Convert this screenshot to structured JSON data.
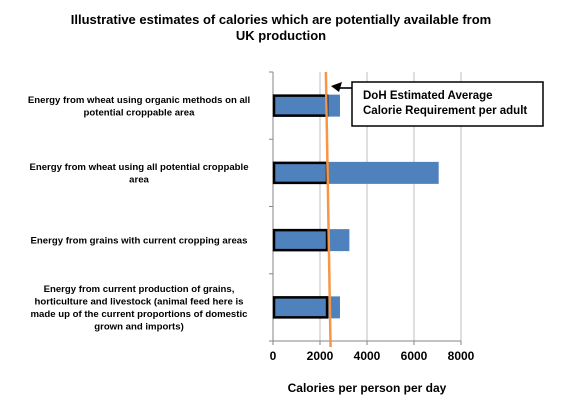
{
  "chart_data": {
    "type": "bar",
    "orientation": "horizontal",
    "title_lines": [
      "Illustrative estimates of calories which are potentially available from",
      "UK production"
    ],
    "xlabel": "Calories per person per day",
    "xlim": [
      0,
      8000
    ],
    "xticks": [
      0,
      2000,
      4000,
      6000,
      8000
    ],
    "grid": "vertical",
    "categories": [
      {
        "label_lines": [
          "Energy from wheat using organic methods on all",
          "potential croppable area"
        ],
        "value": 2850,
        "highlight_value": 2300
      },
      {
        "label_lines": [
          "Energy from wheat using all potential croppable",
          "area"
        ],
        "value": 7050,
        "highlight_value": 2300
      },
      {
        "label_lines": [
          "Energy from grains with current cropping areas"
        ],
        "value": 3250,
        "highlight_value": 2300
      },
      {
        "label_lines": [
          "Energy from current production of grains,",
          "horticulture and livestock (animal feed here is",
          "made up of the current proportions of domestic",
          "grown and imports)"
        ],
        "value": 2850,
        "highlight_value": 2300
      }
    ],
    "reference_line": {
      "value_start": 2250,
      "value_end": 2450,
      "label_lines": [
        "DoH Estimated Average",
        "Calorie Requirement per adult"
      ]
    },
    "colors": {
      "bar": "#4F81BD",
      "highlight_border": "#000000",
      "reference_line": "#F79646",
      "grid": "#BFBFBF"
    }
  }
}
